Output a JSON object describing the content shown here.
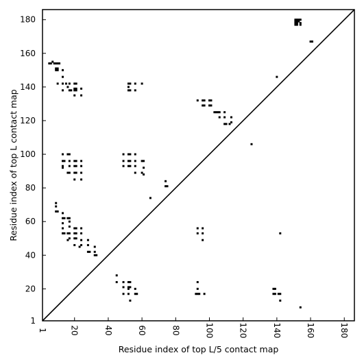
{
  "chart_data": {
    "type": "scatter",
    "title": "",
    "xlabel": "Residue index of top L/5 contact map",
    "ylabel": "Residue index of top L contact map",
    "xlim": [
      1,
      186
    ],
    "ylim": [
      1,
      186
    ],
    "xticks": [
      {
        "value": 1,
        "label": "1"
      },
      {
        "value": 20,
        "label": "20"
      },
      {
        "value": 40,
        "label": "40"
      },
      {
        "value": 60,
        "label": "60"
      },
      {
        "value": 80,
        "label": "80"
      },
      {
        "value": 100,
        "label": "100"
      },
      {
        "value": 120,
        "label": "120"
      },
      {
        "value": 140,
        "label": "140"
      },
      {
        "value": 160,
        "label": "160"
      },
      {
        "value": 180,
        "label": "180"
      }
    ],
    "yticks": [
      {
        "value": 1,
        "label": "1"
      },
      {
        "value": 20,
        "label": "20"
      },
      {
        "value": 40,
        "label": "40"
      },
      {
        "value": 60,
        "label": "60"
      },
      {
        "value": 80,
        "label": "80"
      },
      {
        "value": 100,
        "label": "100"
      },
      {
        "value": 120,
        "label": "120"
      },
      {
        "value": 140,
        "label": "140"
      },
      {
        "value": 160,
        "label": "160"
      },
      {
        "value": 180,
        "label": "180"
      }
    ],
    "diagonal": true,
    "grid": false,
    "marker": "square",
    "marker_color": "#000000",
    "points": [
      [
        5,
        154
      ],
      [
        6,
        154
      ],
      [
        7,
        155
      ],
      [
        8,
        154
      ],
      [
        9,
        154
      ],
      [
        10,
        154
      ],
      [
        11,
        154
      ],
      [
        9,
        151
      ],
      [
        10,
        151
      ],
      [
        9,
        150
      ],
      [
        10,
        150
      ],
      [
        13,
        150
      ],
      [
        10,
        142
      ],
      [
        13,
        146
      ],
      [
        13,
        142
      ],
      [
        15,
        142
      ],
      [
        13,
        138
      ],
      [
        16,
        140
      ],
      [
        17,
        142
      ],
      [
        17,
        138
      ],
      [
        18,
        138
      ],
      [
        20,
        142
      ],
      [
        21,
        142
      ],
      [
        20,
        139
      ],
      [
        21,
        139
      ],
      [
        20,
        138
      ],
      [
        21,
        138
      ],
      [
        20,
        135
      ],
      [
        24,
        139
      ],
      [
        24,
        135
      ],
      [
        52,
        142
      ],
      [
        53,
        142
      ],
      [
        52,
        140
      ],
      [
        52,
        138
      ],
      [
        53,
        138
      ],
      [
        56,
        142
      ],
      [
        56,
        138
      ],
      [
        60,
        142
      ],
      [
        13,
        100
      ],
      [
        13,
        96
      ],
      [
        14,
        96
      ],
      [
        13,
        93
      ],
      [
        13,
        92
      ],
      [
        16,
        100
      ],
      [
        17,
        100
      ],
      [
        17,
        96
      ],
      [
        17,
        93
      ],
      [
        16,
        89
      ],
      [
        17,
        89
      ],
      [
        20,
        96
      ],
      [
        21,
        96
      ],
      [
        20,
        93
      ],
      [
        21,
        93
      ],
      [
        20,
        89
      ],
      [
        21,
        89
      ],
      [
        20,
        85
      ],
      [
        24,
        96
      ],
      [
        24,
        93
      ],
      [
        24,
        89
      ],
      [
        24,
        85
      ],
      [
        49,
        100
      ],
      [
        49,
        96
      ],
      [
        49,
        93
      ],
      [
        52,
        100
      ],
      [
        53,
        100
      ],
      [
        52,
        96
      ],
      [
        53,
        96
      ],
      [
        52,
        93
      ],
      [
        53,
        93
      ],
      [
        56,
        100
      ],
      [
        56,
        96
      ],
      [
        56,
        93
      ],
      [
        56,
        89
      ],
      [
        60,
        96
      ],
      [
        61,
        96
      ],
      [
        60,
        89
      ],
      [
        61,
        88
      ],
      [
        61,
        92
      ],
      [
        74,
        84
      ],
      [
        74,
        81
      ],
      [
        75,
        81
      ],
      [
        65,
        74
      ],
      [
        9,
        71
      ],
      [
        9,
        69
      ],
      [
        9,
        66
      ],
      [
        10,
        66
      ],
      [
        13,
        65
      ],
      [
        13,
        62
      ],
      [
        14,
        62
      ],
      [
        16,
        62
      ],
      [
        17,
        62
      ],
      [
        13,
        59
      ],
      [
        17,
        60
      ],
      [
        13,
        56
      ],
      [
        17,
        57
      ],
      [
        13,
        53
      ],
      [
        14,
        53
      ],
      [
        16,
        53
      ],
      [
        17,
        53
      ],
      [
        17,
        50
      ],
      [
        16,
        49
      ],
      [
        20,
        56
      ],
      [
        21,
        56
      ],
      [
        20,
        53
      ],
      [
        21,
        53
      ],
      [
        20,
        50
      ],
      [
        21,
        50
      ],
      [
        20,
        46
      ],
      [
        24,
        56
      ],
      [
        24,
        53
      ],
      [
        24,
        49
      ],
      [
        24,
        46
      ],
      [
        23,
        45
      ],
      [
        28,
        49
      ],
      [
        28,
        46
      ],
      [
        28,
        42
      ],
      [
        29,
        42
      ],
      [
        32,
        45
      ],
      [
        32,
        42
      ],
      [
        32,
        40
      ],
      [
        33,
        40
      ],
      [
        93,
        56
      ],
      [
        96,
        56
      ],
      [
        93,
        53
      ],
      [
        96,
        53
      ],
      [
        96,
        49
      ],
      [
        142,
        53
      ],
      [
        45,
        28
      ],
      [
        45,
        24
      ],
      [
        49,
        24
      ],
      [
        52,
        24
      ],
      [
        53,
        24
      ],
      [
        49,
        21
      ],
      [
        52,
        21
      ],
      [
        53,
        21
      ],
      [
        52,
        20
      ],
      [
        56,
        20
      ],
      [
        49,
        17
      ],
      [
        52,
        17
      ],
      [
        56,
        17
      ],
      [
        57,
        17
      ],
      [
        53,
        13
      ],
      [
        93,
        24
      ],
      [
        93,
        20
      ],
      [
        92,
        17
      ],
      [
        93,
        17
      ],
      [
        94,
        17
      ],
      [
        97,
        17
      ],
      [
        138,
        20
      ],
      [
        139,
        20
      ],
      [
        138,
        17
      ],
      [
        139,
        17
      ],
      [
        141,
        17
      ],
      [
        142,
        17
      ],
      [
        142,
        13
      ],
      [
        154,
        9
      ],
      [
        93,
        132
      ],
      [
        96,
        132
      ],
      [
        97,
        132
      ],
      [
        96,
        129
      ],
      [
        97,
        129
      ],
      [
        100,
        132
      ],
      [
        101,
        132
      ],
      [
        100,
        129
      ],
      [
        101,
        129
      ],
      [
        103,
        125
      ],
      [
        104,
        125
      ],
      [
        105,
        125
      ],
      [
        106,
        125
      ],
      [
        109,
        125
      ],
      [
        106,
        122
      ],
      [
        109,
        122
      ],
      [
        109,
        118
      ],
      [
        110,
        118
      ],
      [
        113,
        122
      ],
      [
        113,
        119
      ],
      [
        112,
        118
      ],
      [
        125,
        106
      ],
      [
        140,
        146
      ],
      [
        151,
        180
      ],
      [
        152,
        180
      ],
      [
        153,
        180
      ],
      [
        154,
        180
      ],
      [
        151,
        179
      ],
      [
        152,
        179
      ],
      [
        153,
        179
      ],
      [
        151,
        178
      ],
      [
        152,
        178
      ],
      [
        154,
        178
      ],
      [
        151,
        177
      ],
      [
        152,
        177
      ],
      [
        154,
        177
      ],
      [
        160,
        167
      ],
      [
        161,
        167
      ]
    ]
  }
}
